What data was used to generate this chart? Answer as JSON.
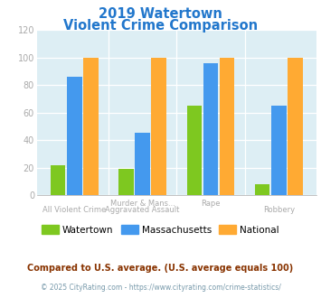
{
  "title_line1": "2019 Watertown",
  "title_line2": "Violent Crime Comparison",
  "watertown": [
    22,
    19,
    65,
    8
  ],
  "massachusetts": [
    86,
    45,
    96,
    65
  ],
  "national": [
    100,
    100,
    100,
    100
  ],
  "color_watertown": "#7ec820",
  "color_massachusetts": "#4499ee",
  "color_national": "#ffaa33",
  "ylim": [
    0,
    120
  ],
  "yticks": [
    0,
    20,
    40,
    60,
    80,
    100,
    120
  ],
  "legend_labels": [
    "Watertown",
    "Massachusetts",
    "National"
  ],
  "footer_text1": "Compared to U.S. average. (U.S. average equals 100)",
  "footer_text2": "© 2025 CityRating.com - https://www.cityrating.com/crime-statistics/",
  "bg_color": "#ddeef4",
  "title_color": "#2277cc",
  "axis_label_color": "#aaaaaa",
  "footer1_color": "#883300",
  "footer2_color": "#7799aa"
}
